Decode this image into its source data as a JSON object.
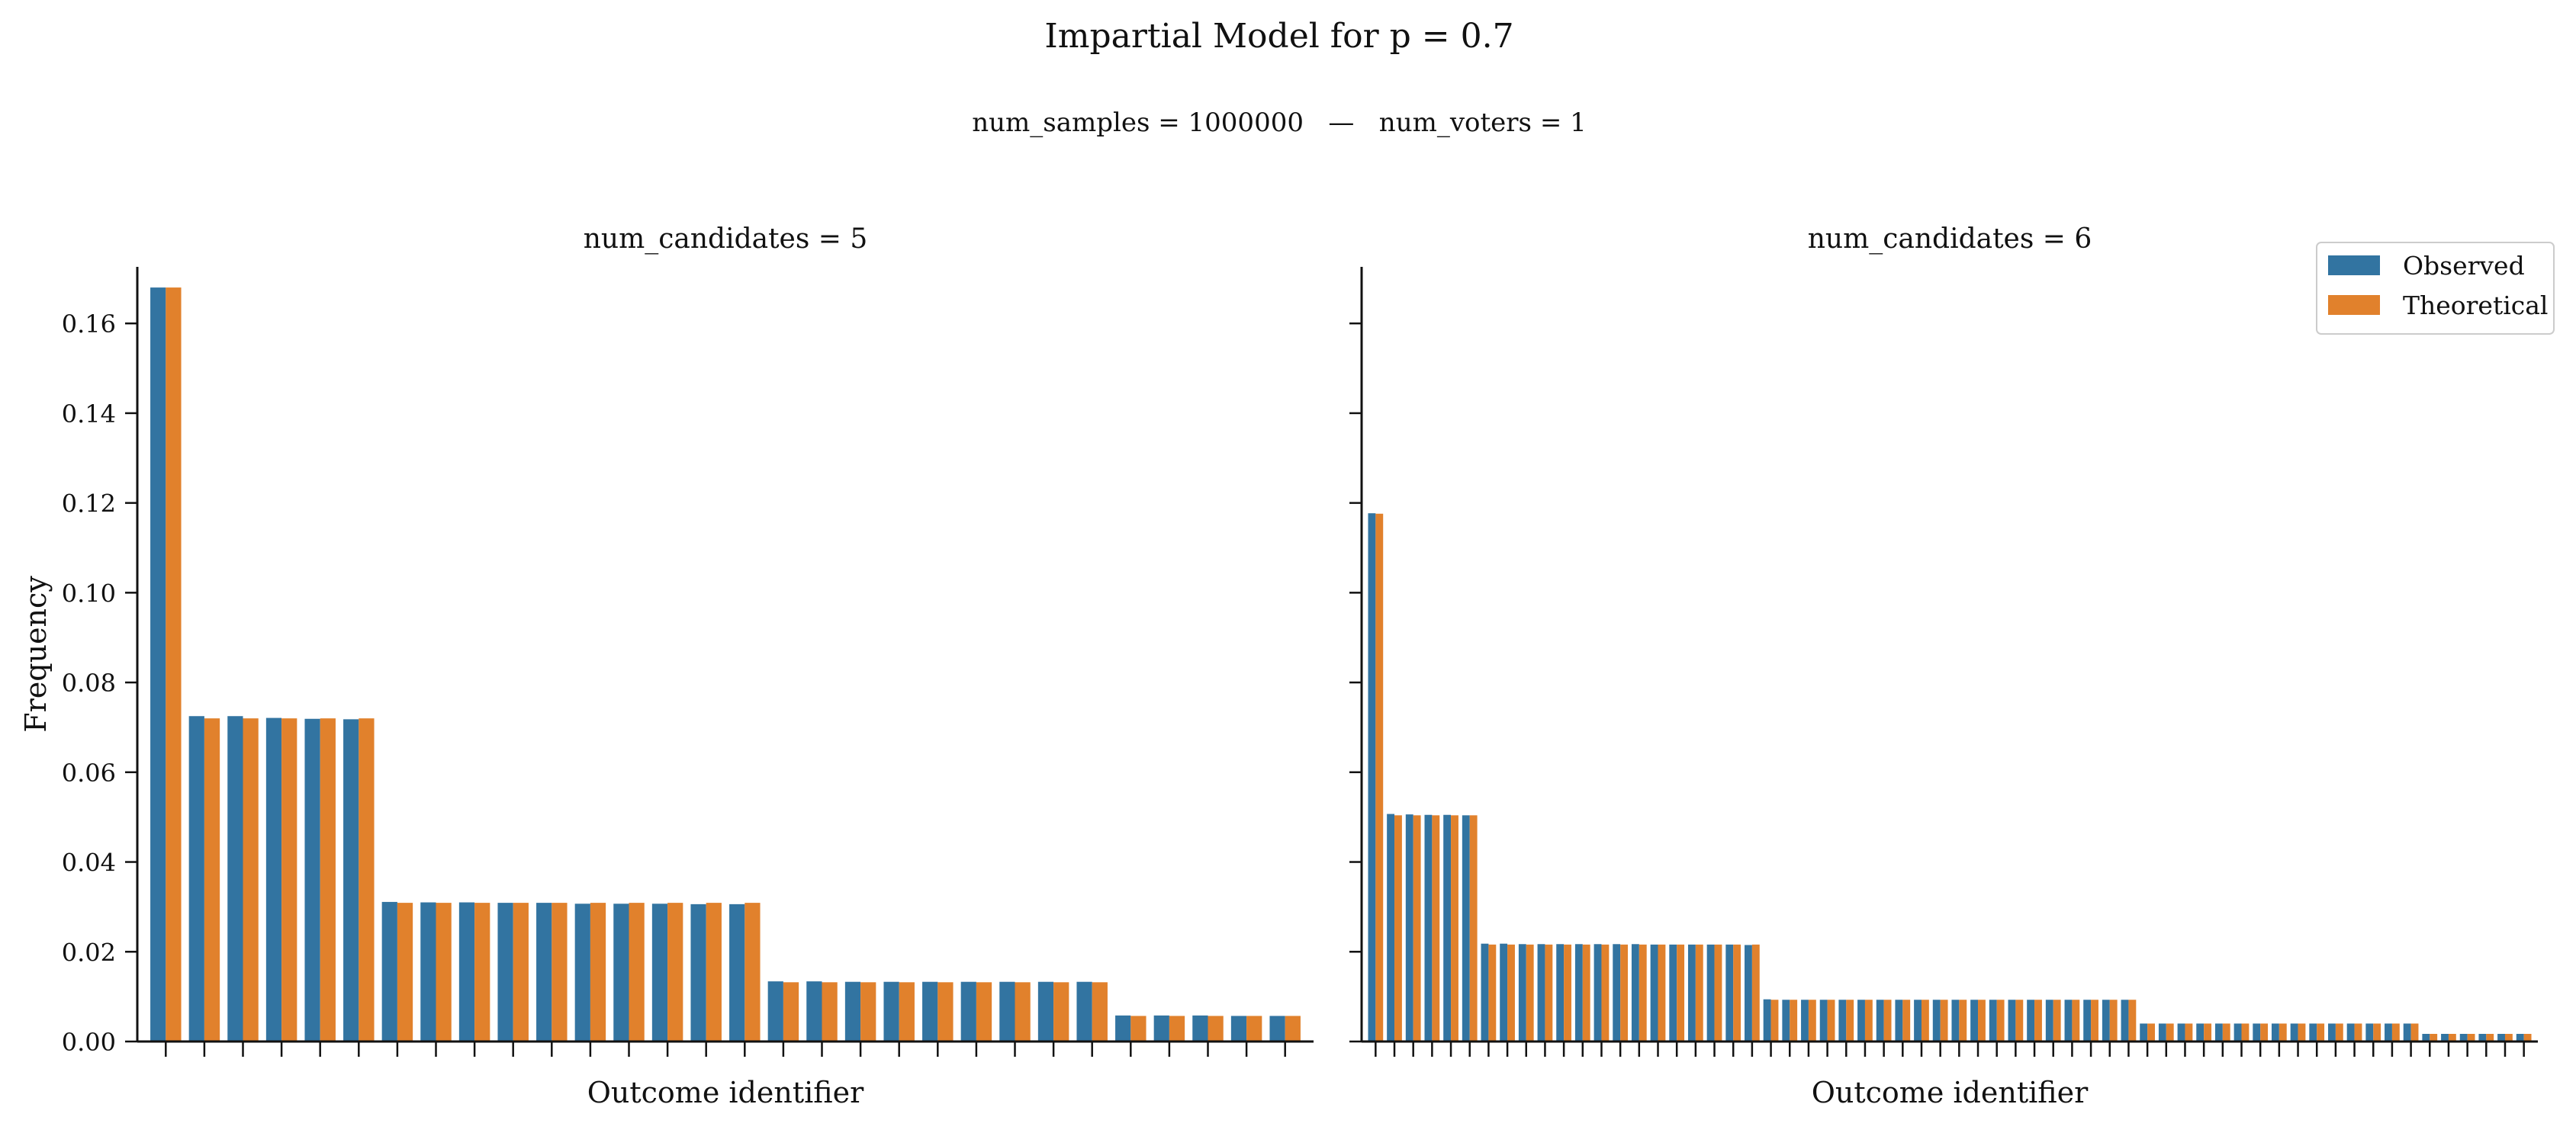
{
  "title": "Impartial Model for p = 0.7",
  "subtitle": "num_samples = 1000000   —   num_voters = 1",
  "colors": {
    "observed": "#3274a1",
    "theoretical": "#e1812c"
  },
  "legend": {
    "placement": "top-right",
    "entries": [
      "Observed",
      "Theoretical"
    ]
  },
  "chart_data": [
    {
      "type": "bar",
      "title": "num_candidates = 5",
      "xlabel": "Outcome identifier",
      "ylabel": "Frequency",
      "ylim": [
        0,
        0.176
      ],
      "yticks": [
        "0.00",
        "0.02",
        "0.04",
        "0.06",
        "0.08",
        "0.10",
        "0.12",
        "0.14",
        "0.16"
      ],
      "grid": false,
      "series": [
        {
          "name": "Observed",
          "values": [
            0.168,
            0.0725,
            0.0725,
            0.0721,
            0.0719,
            0.0718,
            0.0311,
            0.031,
            0.031,
            0.0309,
            0.0309,
            0.0307,
            0.0307,
            0.0307,
            0.0306,
            0.0306,
            0.0134,
            0.0134,
            0.0133,
            0.0133,
            0.0133,
            0.0133,
            0.0133,
            0.0133,
            0.0133,
            0.0058,
            0.0058,
            0.0058,
            0.0057,
            0.0057
          ]
        },
        {
          "name": "Theoretical",
          "values": [
            0.168,
            0.072,
            0.072,
            0.072,
            0.072,
            0.072,
            0.0309,
            0.0309,
            0.0309,
            0.0309,
            0.0309,
            0.0309,
            0.0309,
            0.0309,
            0.0309,
            0.0309,
            0.0132,
            0.0132,
            0.0132,
            0.0132,
            0.0132,
            0.0132,
            0.0132,
            0.0132,
            0.0132,
            0.0057,
            0.0057,
            0.0057,
            0.0057,
            0.0057
          ]
        }
      ]
    },
    {
      "type": "bar",
      "title": "num_candidates = 6",
      "xlabel": "Outcome identifier",
      "ylabel": "",
      "ylim": [
        0,
        0.176
      ],
      "grid": false,
      "series": [
        {
          "name": "Observed",
          "values": [
            0.1177,
            0.0507,
            0.0506,
            0.0505,
            0.0505,
            0.0504,
            0.0218,
            0.0218,
            0.0217,
            0.0217,
            0.0217,
            0.0217,
            0.0217,
            0.0217,
            0.0217,
            0.0216,
            0.0216,
            0.0216,
            0.0216,
            0.0216,
            0.0215,
            0.0094,
            0.0093,
            0.0093,
            0.0093,
            0.0093,
            0.0093,
            0.0093,
            0.0093,
            0.0093,
            0.0093,
            0.0093,
            0.0093,
            0.0093,
            0.0093,
            0.0093,
            0.0093,
            0.0093,
            0.0093,
            0.0093,
            0.0093,
            0.004,
            0.004,
            0.004,
            0.004,
            0.004,
            0.004,
            0.004,
            0.004,
            0.004,
            0.004,
            0.004,
            0.004,
            0.004,
            0.004,
            0.004,
            0.0017,
            0.0017,
            0.0017,
            0.0017,
            0.0017,
            0.0017
          ]
        },
        {
          "name": "Theoretical",
          "values": [
            0.1176,
            0.0504,
            0.0504,
            0.0504,
            0.0504,
            0.0504,
            0.0216,
            0.0216,
            0.0216,
            0.0216,
            0.0216,
            0.0216,
            0.0216,
            0.0216,
            0.0216,
            0.0216,
            0.0216,
            0.0216,
            0.0216,
            0.0216,
            0.0216,
            0.0093,
            0.0093,
            0.0093,
            0.0093,
            0.0093,
            0.0093,
            0.0093,
            0.0093,
            0.0093,
            0.0093,
            0.0093,
            0.0093,
            0.0093,
            0.0093,
            0.0093,
            0.0093,
            0.0093,
            0.0093,
            0.0093,
            0.0093,
            0.004,
            0.004,
            0.004,
            0.004,
            0.004,
            0.004,
            0.004,
            0.004,
            0.004,
            0.004,
            0.004,
            0.004,
            0.004,
            0.004,
            0.004,
            0.0017,
            0.0017,
            0.0017,
            0.0017,
            0.0017,
            0.0017
          ]
        }
      ]
    }
  ]
}
